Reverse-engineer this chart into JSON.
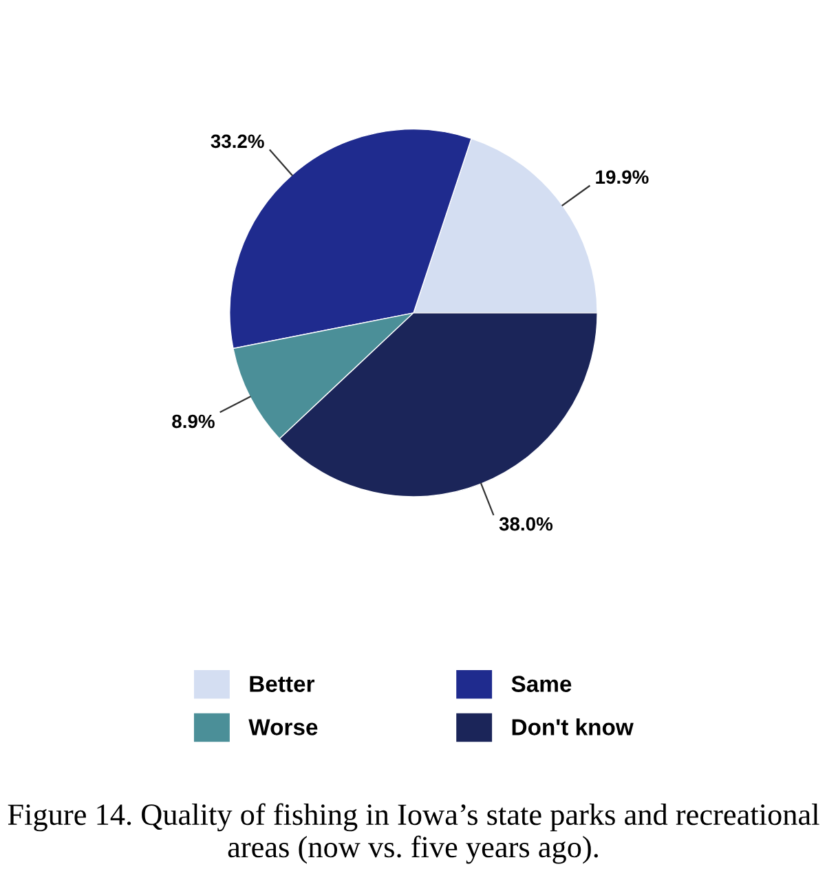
{
  "chart_data": {
    "type": "pie",
    "categories": [
      "Better",
      "Same",
      "Worse",
      "Don't know"
    ],
    "values": [
      19.9,
      33.2,
      8.9,
      38.0
    ],
    "value_labels": [
      "19.9%",
      "33.2%",
      "8.9%",
      "38.0%"
    ],
    "colors": [
      "#d4def2",
      "#1f2b8e",
      "#4b8f98",
      "#1b2559"
    ],
    "legend": "bottom",
    "annotations": [
      "Figure 14. Quality of fishing in Iowa’s state parks and recreational areas (now vs. five years ago)."
    ]
  }
}
